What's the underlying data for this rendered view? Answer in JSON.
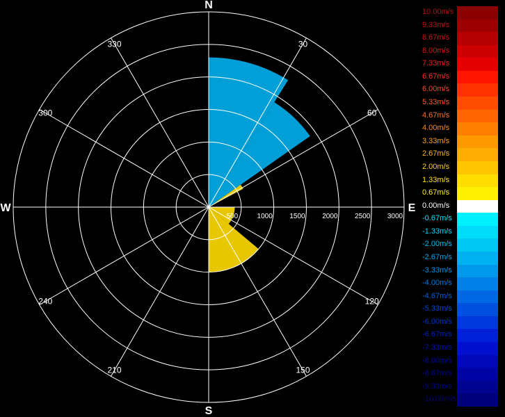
{
  "chart_data": {
    "type": "polar-radial-velocity-ppi",
    "cardinals": {
      "north": "N",
      "east": "E",
      "south": "S",
      "west": "W"
    },
    "azimuth_labels": [
      "30",
      "60",
      "120",
      "150",
      "210",
      "240",
      "300",
      "330"
    ],
    "azimuth_values_deg": [
      30,
      60,
      120,
      150,
      210,
      240,
      300,
      330
    ],
    "range_ticks": [
      "500",
      "1000",
      "1500",
      "2000",
      "2500",
      "3000"
    ],
    "range_values": [
      500,
      1000,
      1500,
      2000,
      2500,
      3000
    ],
    "range_max": 3000,
    "grid": true,
    "velocity_sectors": [
      {
        "az_start": 0,
        "az_end": 32,
        "r_min": 0,
        "r_max": 2300,
        "velocity_ms": -2.67
      },
      {
        "az_start": 32,
        "az_end": 55,
        "r_min": 0,
        "r_max": 1900,
        "velocity_ms": -2.67
      },
      {
        "az_start": 55,
        "az_end": 62,
        "r_min": 0,
        "r_max": 600,
        "velocity_ms": 1.33
      },
      {
        "az_start": 90,
        "az_end": 130,
        "r_min": 0,
        "r_max": 400,
        "velocity_ms": 1.33
      },
      {
        "az_start": 130,
        "az_end": 180,
        "r_min": 0,
        "r_max": 1000,
        "velocity_ms": 1.33
      }
    ],
    "legend": {
      "placement": "right",
      "entries": [
        {
          "label": "10.00m/s",
          "color": "#8b0000",
          "label_color": "#b01010"
        },
        {
          "label": "9.33m/s",
          "color": "#9c0000",
          "label_color": "#c01010"
        },
        {
          "label": "8.67m/s",
          "color": "#b40000",
          "label_color": "#d01010"
        },
        {
          "label": "8.00m/s",
          "color": "#cc0000",
          "label_color": "#e01515"
        },
        {
          "label": "7.33m/s",
          "color": "#e40000",
          "label_color": "#f02020"
        },
        {
          "label": "6.67m/s",
          "color": "#ff1500",
          "label_color": "#ff3020"
        },
        {
          "label": "6.00m/s",
          "color": "#ff3300",
          "label_color": "#ff4525"
        },
        {
          "label": "5.33m/s",
          "color": "#ff4d00",
          "label_color": "#ff5a25"
        },
        {
          "label": "4.67m/s",
          "color": "#ff6600",
          "label_color": "#ff7025"
        },
        {
          "label": "4.00m/s",
          "color": "#ff8000",
          "label_color": "#ff8a20"
        },
        {
          "label": "3.33m/s",
          "color": "#ff9900",
          "label_color": "#ffa020"
        },
        {
          "label": "2.67m/s",
          "color": "#ffad00",
          "label_color": "#ffb820"
        },
        {
          "label": "2.00m/s",
          "color": "#ffc600",
          "label_color": "#ffcc20"
        },
        {
          "label": "1.33m/s",
          "color": "#ffdd00",
          "label_color": "#ffe020"
        },
        {
          "label": "0.67m/s",
          "color": "#fff000",
          "label_color": "#fff020"
        },
        {
          "label": "0.00m/s",
          "color": "#ffffff",
          "label_color": "#ffffff"
        },
        {
          "label": "-0.67m/s",
          "color": "#00f0ff",
          "label_color": "#00eaff"
        },
        {
          "label": "-1.33m/s",
          "color": "#00dcfa",
          "label_color": "#00d8fa"
        },
        {
          "label": "-2.00m/s",
          "color": "#00c8f5",
          "label_color": "#00c0f5"
        },
        {
          "label": "-2.67m/s",
          "color": "#00b0f0",
          "label_color": "#00a8f0"
        },
        {
          "label": "-3.33m/s",
          "color": "#0098ec",
          "label_color": "#0090ec"
        },
        {
          "label": "-4.00m/s",
          "color": "#0080e8",
          "label_color": "#0078e8"
        },
        {
          "label": "-4.67m/s",
          "color": "#0068e4",
          "label_color": "#0060e0"
        },
        {
          "label": "-5.33m/s",
          "color": "#0050e0",
          "label_color": "#0048d8"
        },
        {
          "label": "-6.00m/s",
          "color": "#0038dc",
          "label_color": "#0035d0"
        },
        {
          "label": "-6.67m/s",
          "color": "#0020d8",
          "label_color": "#0020c8"
        },
        {
          "label": "-7.33m/s",
          "color": "#0010cc",
          "label_color": "#0010bb"
        },
        {
          "label": "-8.00m/s",
          "color": "#0008b8",
          "label_color": "#0008aa"
        },
        {
          "label": "-8.67m/s",
          "color": "#0004a4",
          "label_color": "#00059a"
        },
        {
          "label": "-9.33m/s",
          "color": "#000290",
          "label_color": "#00048a"
        },
        {
          "label": "-10.00m/s",
          "color": "#00007c",
          "label_color": "#00037a"
        }
      ]
    }
  }
}
